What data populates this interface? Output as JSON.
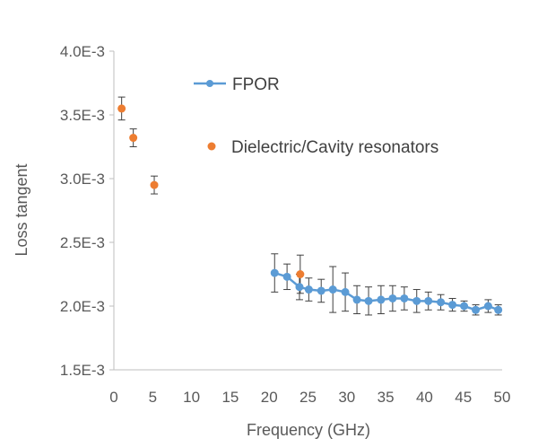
{
  "chart_data": {
    "type": "scatter",
    "xlabel": "Frequency (GHz)",
    "ylabel": "Loss tangent",
    "xlim": [
      0,
      50
    ],
    "ylim": [
      0.0015,
      0.004
    ],
    "x_ticks": [
      "0",
      "5",
      "10",
      "15",
      "20",
      "25",
      "30",
      "35",
      "40",
      "45",
      "50"
    ],
    "y_ticks": [
      "4.0E-3",
      "3.5E-3",
      "3.0E-3",
      "2.5E-3",
      "2.0E-3",
      "1.5E-3"
    ],
    "grid": false,
    "legend_position": "top-right",
    "series": [
      {
        "name": "FPOR",
        "style": "line-markers",
        "color": "#5B9BD5",
        "x": [
          20.7,
          22.3,
          23.9,
          25.1,
          26.7,
          28.2,
          29.8,
          31.3,
          32.8,
          34.4,
          35.9,
          37.4,
          39.0,
          40.5,
          42.1,
          43.6,
          45.1,
          46.6,
          48.2,
          49.5
        ],
        "y": [
          0.00226,
          0.00223,
          0.00215,
          0.00213,
          0.00212,
          0.00213,
          0.00211,
          0.00205,
          0.00204,
          0.00205,
          0.00206,
          0.00206,
          0.00204,
          0.00204,
          0.00203,
          0.00201,
          0.002,
          0.00197,
          0.002,
          0.00197
        ],
        "err": [
          0.00015,
          0.0001,
          0.0001,
          9e-05,
          9e-05,
          0.00018,
          0.00015,
          0.00011,
          0.00011,
          0.00011,
          0.0001,
          9e-05,
          9e-05,
          7e-05,
          6e-05,
          5e-05,
          4e-05,
          4e-05,
          5e-05,
          4e-05
        ]
      },
      {
        "name": "Dielectric/Cavity resonators",
        "style": "markers",
        "color": "#ED7D31",
        "x": [
          1.0,
          2.5,
          5.2,
          24.0
        ],
        "y": [
          0.00355,
          0.00332,
          0.00295,
          0.00225
        ],
        "err": [
          9e-05,
          7e-05,
          7e-05,
          0.00015
        ]
      }
    ]
  }
}
